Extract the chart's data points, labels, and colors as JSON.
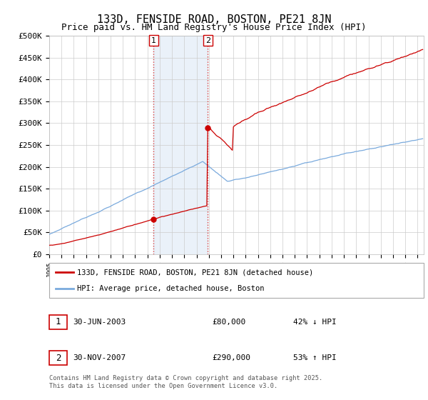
{
  "title": "133D, FENSIDE ROAD, BOSTON, PE21 8JN",
  "subtitle": "Price paid vs. HM Land Registry's House Price Index (HPI)",
  "ylabel_ticks": [
    "£0",
    "£50K",
    "£100K",
    "£150K",
    "£200K",
    "£250K",
    "£300K",
    "£350K",
    "£400K",
    "£450K",
    "£500K"
  ],
  "ytick_values": [
    0,
    50000,
    100000,
    150000,
    200000,
    250000,
    300000,
    350000,
    400000,
    450000,
    500000
  ],
  "ylim": [
    0,
    500000
  ],
  "xlim_start": 1995.0,
  "xlim_end": 2025.5,
  "line1_color": "#cc0000",
  "line2_color": "#7aaadd",
  "shade_color": "#dce9f5",
  "shade_alpha": 0.6,
  "vline_color": "#dd4444",
  "vline_style": ":",
  "transaction1_x": 2003.5,
  "transaction1_y": 80000,
  "transaction2_x": 2007.92,
  "transaction2_y": 290000,
  "marker_color": "#cc0000",
  "legend_line1": "133D, FENSIDE ROAD, BOSTON, PE21 8JN (detached house)",
  "legend_line2": "HPI: Average price, detached house, Boston",
  "table_row1": [
    "1",
    "30-JUN-2003",
    "£80,000",
    "42% ↓ HPI"
  ],
  "table_row2": [
    "2",
    "30-NOV-2007",
    "£290,000",
    "53% ↑ HPI"
  ],
  "footer": "Contains HM Land Registry data © Crown copyright and database right 2025.\nThis data is licensed under the Open Government Licence v3.0.",
  "background_color": "#ffffff",
  "grid_color": "#cccccc",
  "title_fontsize": 11,
  "subtitle_fontsize": 9,
  "axis_fontsize": 8
}
